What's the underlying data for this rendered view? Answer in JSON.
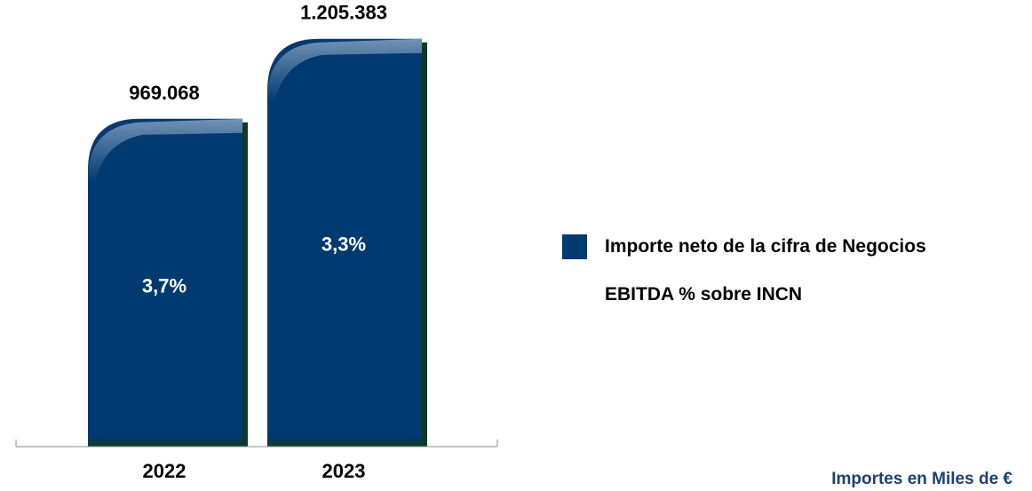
{
  "chart_data": {
    "type": "bar",
    "categories": [
      "2022",
      "2023"
    ],
    "series": [
      {
        "name": "Importe neto de la cifra de Negocios",
        "values": [
          969068,
          1205383
        ],
        "value_labels": [
          "969.068",
          "1.205.383"
        ]
      },
      {
        "name": "EBITDA % sobre INCN",
        "values": [
          3.7,
          3.3
        ],
        "value_labels": [
          "3,7%",
          "3,3%"
        ]
      }
    ],
    "grid": false,
    "legend_position": "right",
    "colors": {
      "bar": "#003A70",
      "bar_highlight": "#6f8fb3",
      "bar_base": "#0f3b22",
      "axis": "#888888",
      "text": "#000000",
      "footnote": "#1F3F73"
    }
  },
  "legend": {
    "items": [
      {
        "label": "Importe neto de la cifra de Negocios",
        "icon": "square-swatch"
      },
      {
        "label": "EBITDA % sobre INCN",
        "icon": "none"
      }
    ]
  },
  "footnote": "Importes en Miles de €"
}
